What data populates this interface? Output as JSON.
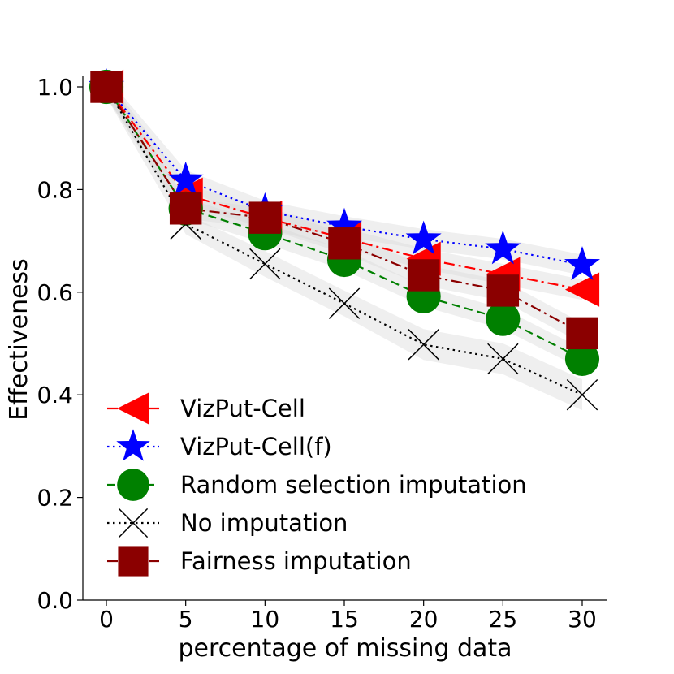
{
  "chart_data": {
    "type": "line",
    "xlabel": "percentage of missing data",
    "ylabel": "Effectiveness",
    "xlim": [
      -2.5,
      31.5
    ],
    "ylim": [
      0.0,
      1.0
    ],
    "xticks": [
      0,
      5,
      10,
      15,
      20,
      25,
      30
    ],
    "yticks": [
      0.0,
      0.2,
      0.4,
      0.6,
      0.8,
      1.0
    ],
    "xtick_labels": [
      "0",
      "5",
      "10",
      "15",
      "20",
      "25",
      "30"
    ],
    "ytick_labels": [
      "0.0",
      "0.2",
      "0.4",
      "0.6",
      "0.8",
      "1.0"
    ],
    "grid": false,
    "legend_position": "lower-left",
    "x": [
      0,
      5,
      10,
      15,
      20,
      25,
      30
    ],
    "series": [
      {
        "name": "VizPut-Cell",
        "color": "#ff0000",
        "marker": "triangle-left",
        "linestyle": "dashdot",
        "values": [
          1.0,
          0.79,
          0.745,
          0.705,
          0.665,
          0.635,
          0.605
        ],
        "band": [
          0.02,
          0.02,
          0.02,
          0.02,
          0.02,
          0.02,
          0.02
        ]
      },
      {
        "name": "VizPut-Cell(f)",
        "color": "#0000ff",
        "marker": "star",
        "linestyle": "dotted",
        "values": [
          1.0,
          0.818,
          0.758,
          0.728,
          0.703,
          0.684,
          0.653
        ],
        "band": [
          0.02,
          0.02,
          0.02,
          0.02,
          0.02,
          0.02,
          0.02
        ]
      },
      {
        "name": "Random selection imputation",
        "color": "#008000",
        "marker": "circle",
        "linestyle": "dashed",
        "values": [
          1.0,
          0.763,
          0.715,
          0.663,
          0.592,
          0.548,
          0.47
        ],
        "band": [
          0.02,
          0.02,
          0.02,
          0.02,
          0.02,
          0.02,
          0.02
        ]
      },
      {
        "name": "No imputation",
        "color": "#000000",
        "marker": "x",
        "linestyle": "dotted",
        "values": [
          1.0,
          0.733,
          0.655,
          0.578,
          0.498,
          0.47,
          0.4
        ],
        "band": [
          0.02,
          0.02,
          0.025,
          0.025,
          0.03,
          0.03,
          0.03
        ]
      },
      {
        "name": "Fairness imputation",
        "color": "#8b0000",
        "marker": "square",
        "linestyle": "dashdot",
        "values": [
          1.0,
          0.763,
          0.745,
          0.695,
          0.633,
          0.603,
          0.52
        ],
        "band": [
          0.02,
          0.02,
          0.02,
          0.02,
          0.02,
          0.02,
          0.02
        ]
      }
    ]
  }
}
